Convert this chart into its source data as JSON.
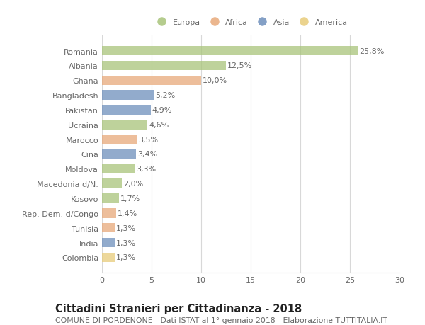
{
  "countries": [
    "Romania",
    "Albania",
    "Ghana",
    "Bangladesh",
    "Pakistan",
    "Ucraina",
    "Marocco",
    "Cina",
    "Moldova",
    "Macedonia d/N.",
    "Kosovo",
    "Rep. Dem. d/Congo",
    "Tunisia",
    "India",
    "Colombia"
  ],
  "values": [
    25.8,
    12.5,
    10.0,
    5.2,
    4.9,
    4.6,
    3.5,
    3.4,
    3.3,
    2.0,
    1.7,
    1.4,
    1.3,
    1.3,
    1.3
  ],
  "labels": [
    "25,8%",
    "12,5%",
    "10,0%",
    "5,2%",
    "4,9%",
    "4,6%",
    "3,5%",
    "3,4%",
    "3,3%",
    "2,0%",
    "1,7%",
    "1,4%",
    "1,3%",
    "1,3%",
    "1,3%"
  ],
  "continents": [
    "Europa",
    "Europa",
    "Africa",
    "Asia",
    "Asia",
    "Europa",
    "Africa",
    "Asia",
    "Europa",
    "Europa",
    "Europa",
    "Africa",
    "Africa",
    "Asia",
    "America"
  ],
  "continent_colors": {
    "Europa": "#a8c47a",
    "Africa": "#e8a97a",
    "Asia": "#6e8fbc",
    "America": "#e8cc7a"
  },
  "legend_order": [
    "Europa",
    "Africa",
    "Asia",
    "America"
  ],
  "title": "Cittadini Stranieri per Cittadinanza - 2018",
  "subtitle": "COMUNE DI PORDENONE - Dati ISTAT al 1° gennaio 2018 - Elaborazione TUTTITALIA.IT",
  "xlim": [
    0,
    30
  ],
  "xticks": [
    0,
    5,
    10,
    15,
    20,
    25,
    30
  ],
  "bg_color": "#ffffff",
  "grid_color": "#d8d8d8",
  "bar_height": 0.65,
  "label_fontsize": 8.0,
  "tick_fontsize": 8.0,
  "title_fontsize": 10.5,
  "subtitle_fontsize": 7.8,
  "text_color": "#666666"
}
